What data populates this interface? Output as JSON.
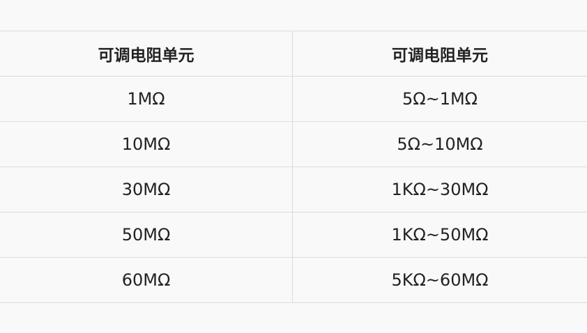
{
  "table": {
    "headers": [
      "可调电阻单元",
      "可调电阻单元"
    ],
    "rows": [
      [
        "1MΩ",
        "5Ω~1MΩ"
      ],
      [
        "10MΩ",
        "5Ω~10MΩ"
      ],
      [
        "30MΩ",
        "1KΩ~30MΩ"
      ],
      [
        "50MΩ",
        "1KΩ~50MΩ"
      ],
      [
        "60MΩ",
        "5KΩ~60MΩ"
      ]
    ]
  }
}
